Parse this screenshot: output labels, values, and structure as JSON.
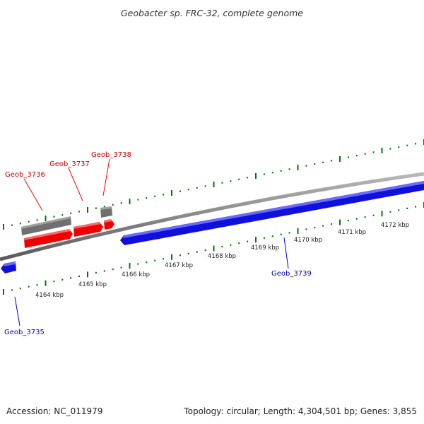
{
  "title": "Geobacter sp. FRC-32, complete genome",
  "footer": {
    "accession": "Accession: NC_011979",
    "summary": "Topology: circular; Length: 4,304,501 bp; Genes: 3,855"
  },
  "colors": {
    "forward_gene": "#ff0000",
    "reverse_gene": "#0000ff",
    "other_feature": "#777777",
    "backbone": "#808080",
    "tick": "#007700",
    "forward_label": "#cc0000",
    "reverse_label": "#0000aa"
  },
  "scale": {
    "ticks": [
      {
        "label": "4164 kbp"
      },
      {
        "label": "4165 kbp"
      },
      {
        "label": "4166 kbp"
      },
      {
        "label": "4167 kbp"
      },
      {
        "label": "4168 kbp"
      },
      {
        "label": "4169 kbp"
      },
      {
        "label": "4170 kbp"
      },
      {
        "label": "4171 kbp"
      },
      {
        "label": "4172 kbp"
      }
    ]
  },
  "genes": [
    {
      "label": "Geob_3735",
      "strand": "reverse"
    },
    {
      "label": "Geob_3736",
      "strand": "forward"
    },
    {
      "label": "Geob_3737",
      "strand": "forward"
    },
    {
      "label": "Geob_3738",
      "strand": "forward"
    },
    {
      "label": "Geob_3739",
      "strand": "reverse"
    }
  ]
}
